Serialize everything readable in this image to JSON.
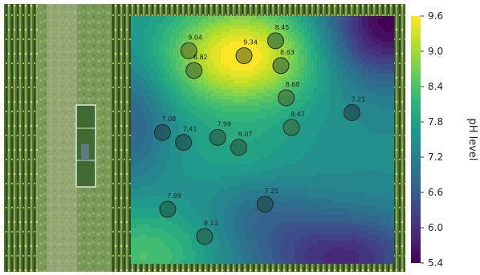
{
  "map": {
    "colorbar": {
      "label": "pH level",
      "ticks": [
        9.6,
        9.0,
        8.4,
        7.8,
        7.2,
        6.6,
        6.0,
        5.4
      ],
      "min": 5.4,
      "max": 9.6,
      "colormap": [
        "#440154",
        "#482878",
        "#3e4989",
        "#31688e",
        "#26828e",
        "#1f9e89",
        "#35b779",
        "#6ece58",
        "#b5de2b",
        "#fde725"
      ]
    },
    "samples": [
      {
        "label": "9.04",
        "value": 9.04
      },
      {
        "label": "9.34",
        "value": 9.34
      },
      {
        "label": "8.45",
        "value": 8.45
      },
      {
        "label": "8.82",
        "value": 8.82
      },
      {
        "label": "8.63",
        "value": 8.63
      },
      {
        "label": "8.68",
        "value": 8.68
      },
      {
        "label": "8.47",
        "value": 8.47
      },
      {
        "label": "7.21",
        "value": 7.21
      },
      {
        "label": "7.08",
        "value": 7.08
      },
      {
        "label": "7.41",
        "value": 7.41
      },
      {
        "label": "7.99",
        "value": 7.99
      },
      {
        "label": "8.07",
        "value": 8.07
      },
      {
        "label": "7.89",
        "value": 7.89
      },
      {
        "label": "7.25",
        "value": 7.25
      },
      {
        "label": "8.13",
        "value": 8.13
      }
    ]
  }
}
